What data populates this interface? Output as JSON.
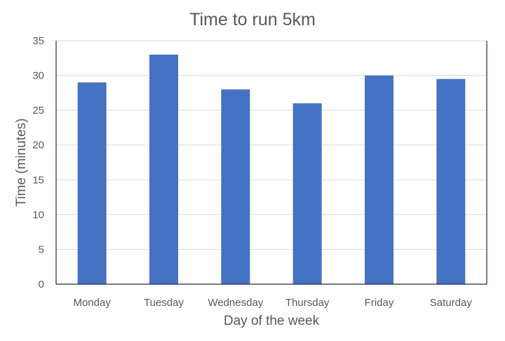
{
  "chart_data": {
    "type": "bar",
    "title": "Time to run 5km",
    "xlabel": "Day of the week",
    "ylabel": "Time (minutes)",
    "categories": [
      "Monday",
      "Tuesday",
      "Wednesday",
      "Thursday",
      "Friday",
      "Saturday"
    ],
    "values": [
      29,
      33,
      28,
      26,
      30,
      29.5
    ],
    "ylim": [
      0,
      35
    ],
    "yticks": [
      0,
      5,
      10,
      15,
      20,
      25,
      30,
      35
    ],
    "grid": true,
    "legend": "none",
    "bar_color": "#4472C4",
    "grid_color": "#d9d9d9",
    "axis_color": "#1f2a44"
  }
}
